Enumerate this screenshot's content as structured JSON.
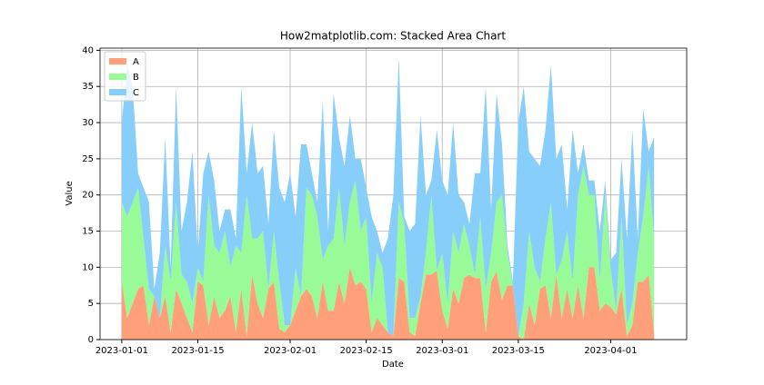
{
  "chart_data": {
    "type": "stacked_area",
    "title": "How2matplotlib.com: Stacked Area Chart",
    "x_label": "Date",
    "y_label": "Value",
    "x": [
      "2023-01-01",
      "2023-01-02",
      "2023-01-03",
      "2023-01-04",
      "2023-01-05",
      "2023-01-06",
      "2023-01-07",
      "2023-01-08",
      "2023-01-09",
      "2023-01-10",
      "2023-01-11",
      "2023-01-12",
      "2023-01-13",
      "2023-01-14",
      "2023-01-15",
      "2023-01-16",
      "2023-01-17",
      "2023-01-18",
      "2023-01-19",
      "2023-01-20",
      "2023-01-21",
      "2023-01-22",
      "2023-01-23",
      "2023-01-24",
      "2023-01-25",
      "2023-01-26",
      "2023-01-27",
      "2023-01-28",
      "2023-01-29",
      "2023-01-30",
      "2023-01-31",
      "2023-02-01",
      "2023-02-02",
      "2023-02-03",
      "2023-02-04",
      "2023-02-05",
      "2023-02-06",
      "2023-02-07",
      "2023-02-08",
      "2023-02-09",
      "2023-02-10",
      "2023-02-11",
      "2023-02-12",
      "2023-02-13",
      "2023-02-14",
      "2023-02-15",
      "2023-02-16",
      "2023-02-17",
      "2023-02-18",
      "2023-02-19",
      "2023-02-20",
      "2023-02-21",
      "2023-02-22",
      "2023-02-23",
      "2023-02-24",
      "2023-02-25",
      "2023-02-26",
      "2023-02-27",
      "2023-02-28",
      "2023-03-01",
      "2023-03-02",
      "2023-03-03",
      "2023-03-04",
      "2023-03-05",
      "2023-03-06",
      "2023-03-07",
      "2023-03-08",
      "2023-03-09",
      "2023-03-10",
      "2023-03-11",
      "2023-03-12",
      "2023-03-13",
      "2023-03-14",
      "2023-03-15",
      "2023-03-16",
      "2023-03-17",
      "2023-03-18",
      "2023-03-19",
      "2023-03-20",
      "2023-03-21",
      "2023-03-22",
      "2023-03-23",
      "2023-03-24",
      "2023-03-25",
      "2023-03-26",
      "2023-03-27",
      "2023-03-28",
      "2023-03-29",
      "2023-03-30",
      "2023-03-31",
      "2023-04-01",
      "2023-04-02",
      "2023-04-03",
      "2023-04-04",
      "2023-04-05",
      "2023-04-06",
      "2023-04-07",
      "2023-04-08",
      "2023-04-09"
    ],
    "series": [
      {
        "name": "A",
        "color": "#ffa07a",
        "values": [
          8,
          3,
          5,
          7,
          7.5,
          2,
          6,
          3,
          6,
          1,
          7,
          5,
          3,
          1,
          8,
          7.5,
          2,
          6,
          3,
          4,
          6,
          1,
          7,
          0.5,
          9,
          5,
          3,
          7,
          8,
          1.5,
          1,
          2,
          4,
          6,
          7,
          6,
          3,
          8,
          4,
          4,
          8,
          5,
          10,
          7.5,
          8,
          7,
          1,
          3,
          2,
          1,
          0.5,
          8.5,
          8,
          1,
          0.5,
          5,
          9,
          9,
          9.5,
          4,
          1.5,
          7,
          5,
          8.5,
          9,
          8.5,
          8.5,
          1,
          8,
          9.5,
          5.5,
          7.5,
          7.5,
          0.5,
          0,
          5,
          2,
          7,
          7.5,
          3,
          9,
          3,
          7,
          3,
          7.5,
          3,
          10,
          10,
          4,
          5,
          4.5,
          3.5,
          7,
          0.5,
          2,
          8,
          8,
          9,
          1
        ]
      },
      {
        "name": "B",
        "color": "#98fb98",
        "values": [
          11,
          14,
          14,
          14,
          6.5,
          5,
          0,
          0,
          7,
          7,
          12,
          4,
          5,
          4,
          2,
          0.5,
          18,
          7,
          9,
          11,
          4,
          12,
          5,
          19.5,
          5,
          9,
          12,
          0,
          7,
          6.5,
          1,
          0,
          6,
          0,
          14,
          14,
          14,
          3,
          9,
          10,
          13,
          8,
          9,
          14.5,
          7,
          10,
          4,
          9,
          8,
          0,
          0,
          10.5,
          8,
          2,
          2.5,
          1,
          3,
          11,
          0,
          8,
          3.5,
          8,
          7,
          7.5,
          4,
          0.5,
          8.5,
          6,
          4,
          9.5,
          14.5,
          4.5,
          0,
          0,
          5,
          10,
          8,
          1,
          6.5,
          16,
          0,
          8,
          8,
          5,
          12.5,
          21,
          10,
          10,
          4,
          15,
          5.5,
          0.5,
          10,
          1.5,
          3,
          4,
          9,
          15,
          13
        ]
      },
      {
        "name": "C",
        "color": "#87cefa",
        "values": [
          11,
          21,
          16,
          2,
          7,
          12,
          1,
          9,
          15,
          2,
          16,
          6,
          11,
          21,
          2,
          15,
          6,
          9,
          3,
          3,
          8,
          1,
          23,
          3,
          16,
          9,
          9,
          9,
          14,
          13,
          17,
          21,
          7,
          21,
          6,
          3,
          2,
          22,
          2,
          20,
          7,
          11,
          12,
          3,
          10,
          4,
          12,
          3,
          2,
          13,
          19.5,
          20,
          1,
          12,
          13,
          25,
          8,
          2,
          19.5,
          10,
          15,
          15,
          8,
          3,
          3,
          14,
          6,
          28,
          6,
          15,
          7,
          1,
          0.5,
          29.5,
          30,
          11,
          15,
          16,
          15,
          19,
          16,
          16,
          3,
          21,
          3,
          3,
          2,
          2,
          7,
          2,
          1,
          8,
          8,
          12,
          24,
          2,
          15,
          2,
          14
        ]
      }
    ],
    "xlim": [
      "2022-12-28",
      "2023-04-15"
    ],
    "xticks": [
      "2023-01-01",
      "2023-01-15",
      "2023-02-01",
      "2023-02-15",
      "2023-03-01",
      "2023-03-15",
      "2023-04-01"
    ],
    "ylim": [
      0,
      40.3
    ],
    "yticks": [
      0,
      5,
      10,
      15,
      20,
      25,
      30,
      35,
      40
    ],
    "grid": true,
    "legend": "upper left"
  }
}
